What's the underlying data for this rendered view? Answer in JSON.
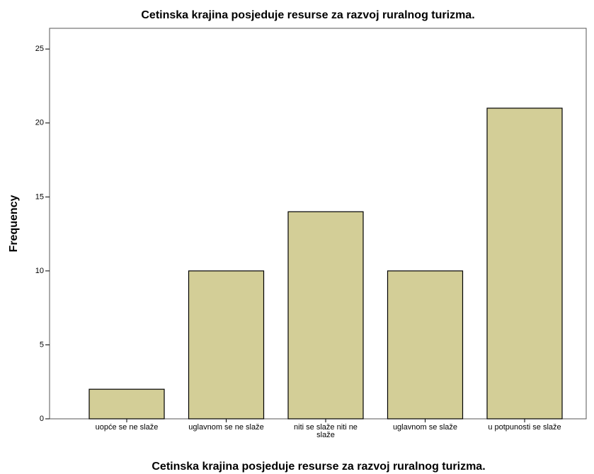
{
  "chart_data": {
    "type": "bar",
    "title": "Cetinska krajina posjeduje resurse za razvoj ruralnog turizma.",
    "x_label": "Cetinska krajina posjeduje resurse za razvoj ruralnog turizma.",
    "y_label": "Frequency",
    "categories": [
      "uopće se ne slaže",
      "uglavnom se ne slaže",
      "niti se slaže niti ne slaže",
      "uglavnom se slaže",
      "u potpunosti se slaže"
    ],
    "values": [
      2,
      10,
      14,
      10,
      21
    ],
    "color": "#d3ce97",
    "ylim": [
      0,
      26.4
    ],
    "yticks": [
      0,
      5,
      10,
      15,
      20,
      25
    ],
    "grid": false
  }
}
